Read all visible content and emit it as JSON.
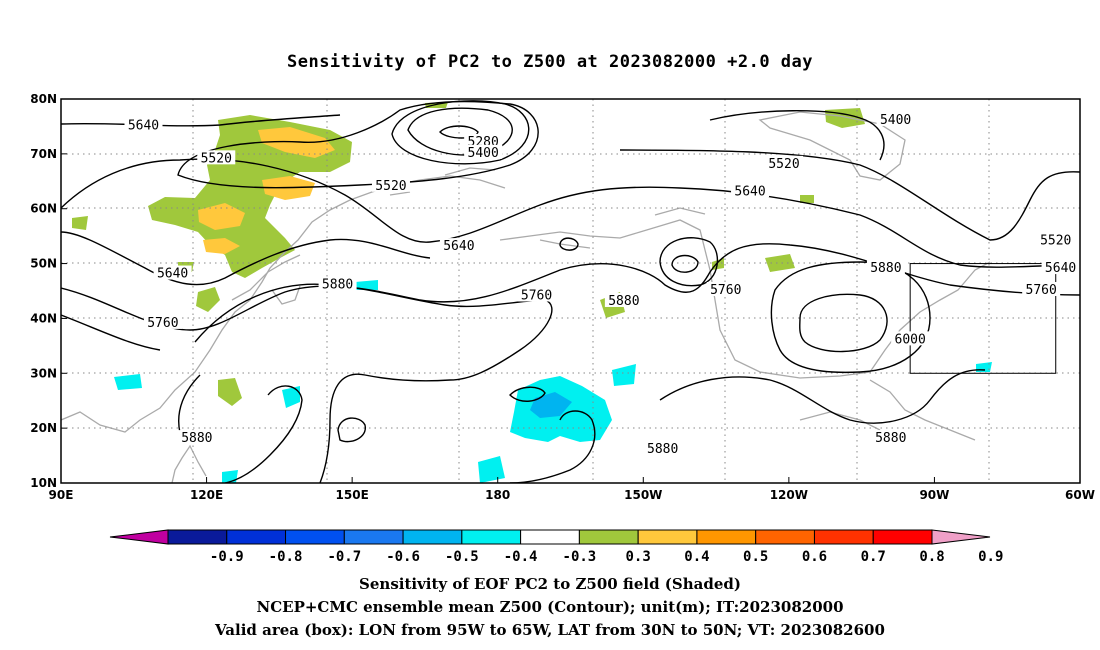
{
  "title": "Sensitivity of PC2 to Z500 at 2023082000 +2.0 day",
  "map": {
    "lon_range_deg_east": [
      90,
      300
    ],
    "lat_range": [
      10,
      80
    ],
    "lon_ticks": [
      {
        "lon": 90,
        "label": "90E"
      },
      {
        "lon": 120,
        "label": "120E"
      },
      {
        "lon": 150,
        "label": "150E"
      },
      {
        "lon": 180,
        "label": "180"
      },
      {
        "lon": 210,
        "label": "150W"
      },
      {
        "lon": 240,
        "label": "120W"
      },
      {
        "lon": 270,
        "label": "90W"
      },
      {
        "lon": 300,
        "label": "60W"
      }
    ],
    "lat_ticks": [
      {
        "lat": 10,
        "label": "10N"
      },
      {
        "lat": 20,
        "label": "20N"
      },
      {
        "lat": 30,
        "label": "30N"
      },
      {
        "lat": 40,
        "label": "40N"
      },
      {
        "lat": 50,
        "label": "50N"
      },
      {
        "lat": 60,
        "label": "60N"
      },
      {
        "lat": 70,
        "label": "70N"
      },
      {
        "lat": 80,
        "label": "80N"
      }
    ],
    "grid": "dotted",
    "valid_box": {
      "lon_west": 265,
      "lon_east": 295,
      "lat_south": 30,
      "lat_north": 50
    },
    "contour_labels": [
      {
        "text": "5640",
        "lon": 107,
        "lat": 75
      },
      {
        "text": "5520",
        "lon": 122,
        "lat": 69
      },
      {
        "text": "5280",
        "lon": 177,
        "lat": 72
      },
      {
        "text": "5400",
        "lon": 177,
        "lat": 70
      },
      {
        "text": "5520",
        "lon": 158,
        "lat": 64
      },
      {
        "text": "5400",
        "lon": 262,
        "lat": 76
      },
      {
        "text": "5520",
        "lon": 239,
        "lat": 68
      },
      {
        "text": "5640",
        "lon": 232,
        "lat": 63
      },
      {
        "text": "5640",
        "lon": 172,
        "lat": 53
      },
      {
        "text": "5520",
        "lon": 295,
        "lat": 54
      },
      {
        "text": "5640",
        "lon": 113,
        "lat": 48
      },
      {
        "text": "5880",
        "lon": 260,
        "lat": 49
      },
      {
        "text": "5640",
        "lon": 296,
        "lat": 49
      },
      {
        "text": "5880",
        "lon": 147,
        "lat": 46
      },
      {
        "text": "5760",
        "lon": 227,
        "lat": 45
      },
      {
        "text": "5760",
        "lon": 292,
        "lat": 45
      },
      {
        "text": "5760",
        "lon": 188,
        "lat": 44
      },
      {
        "text": "5880",
        "lon": 206,
        "lat": 43
      },
      {
        "text": "5760",
        "lon": 111,
        "lat": 39
      },
      {
        "text": "6000",
        "lon": 265,
        "lat": 36
      },
      {
        "text": "5880",
        "lon": 118,
        "lat": 18
      },
      {
        "text": "5880",
        "lon": 261,
        "lat": 18
      },
      {
        "text": "5880",
        "lon": 214,
        "lat": 16
      }
    ]
  },
  "colorbar": {
    "colors": [
      "#c000a0",
      "#0a1a9a",
      "#0030d8",
      "#0050f0",
      "#1a78f0",
      "#00b4f0",
      "#00f0f0",
      "#ffffff",
      "#a0c83c",
      "#ffc83c",
      "#ff9600",
      "#ff6400",
      "#ff3200",
      "#ff0000",
      "#f0a0c8"
    ],
    "labels": [
      "-0.9",
      "-0.8",
      "-0.7",
      "-0.6",
      "-0.5",
      "-0.4",
      "-0.3",
      "0.3",
      "0.4",
      "0.5",
      "0.6",
      "0.7",
      "0.8",
      "0.9"
    ]
  },
  "caption": {
    "line1": "Sensitivity of EOF PC2 to Z500 field (Shaded)",
    "line2": "NCEP+CMC ensemble mean Z500 (Contour); unit(m); IT:2023082000",
    "line3": "Valid area (box): LON from 95W to 65W, LAT from 30N to 50N; VT: 2023082600"
  }
}
